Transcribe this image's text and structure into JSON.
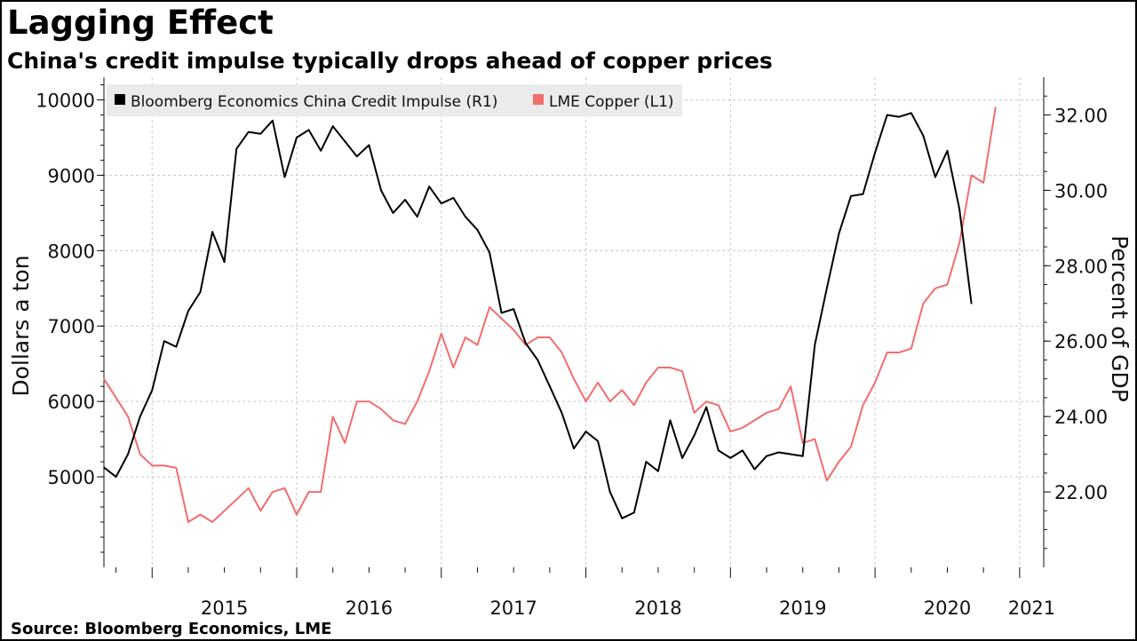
{
  "header": {
    "title": "Lagging Effect",
    "subtitle": "China's credit impulse typically drops ahead of copper prices"
  },
  "footer": {
    "source": "Source: Bloomberg Economics, LME"
  },
  "colors": {
    "credit_impulse": "#000000",
    "copper": "#f26d6d",
    "grid": "#c8c8c8",
    "legend_bg": "#ebebeb"
  },
  "chart_data": {
    "type": "line",
    "title": "Lagging Effect",
    "subtitle": "China's credit impulse typically drops ahead of copper prices",
    "x_tick_labels": [
      "2015",
      "2016",
      "2017",
      "2018",
      "2019",
      "2020",
      "2021"
    ],
    "xlim": [
      "2014-09",
      "2021-03"
    ],
    "y_left": {
      "label": "Dollars a ton",
      "ticks": [
        "5000",
        "6000",
        "7000",
        "8000",
        "9000",
        "10000"
      ],
      "range": [
        3800,
        10300
      ]
    },
    "y_right": {
      "label": "Percent of GDP",
      "ticks": [
        "22.00",
        "24.00",
        "26.00",
        "28.00",
        "30.00",
        "32.00"
      ],
      "range": [
        20,
        33
      ]
    },
    "legend": {
      "position": "top-left",
      "entries": [
        "Bloomberg Economics China Credit Impulse  (R1)",
        "LME Copper (L1)"
      ]
    },
    "grid": true,
    "series": [
      {
        "name": "Bloomberg Economics China Credit Impulse  (R1)",
        "axis": "right",
        "color": "#000000",
        "points": [
          [
            "2014-09",
            22.65
          ],
          [
            "2014-10",
            22.4
          ],
          [
            "2014-11",
            23.0
          ],
          [
            "2014-12",
            24.0
          ],
          [
            "2015-01",
            24.7
          ],
          [
            "2015-02",
            26.0
          ],
          [
            "2015-03",
            25.85
          ],
          [
            "2015-04",
            26.8
          ],
          [
            "2015-05",
            27.3
          ],
          [
            "2015-06",
            28.9
          ],
          [
            "2015-07",
            28.1
          ],
          [
            "2015-08",
            31.1
          ],
          [
            "2015-09",
            31.55
          ],
          [
            "2015-10",
            31.5
          ],
          [
            "2015-11",
            31.85
          ],
          [
            "2015-12",
            30.35
          ],
          [
            "2016-01",
            31.4
          ],
          [
            "2016-02",
            31.6
          ],
          [
            "2016-03",
            31.05
          ],
          [
            "2016-04",
            31.7
          ],
          [
            "2016-05",
            31.3
          ],
          [
            "2016-06",
            30.9
          ],
          [
            "2016-07",
            31.2
          ],
          [
            "2016-08",
            30.0
          ],
          [
            "2016-09",
            29.4
          ],
          [
            "2016-10",
            29.75
          ],
          [
            "2016-11",
            29.3
          ],
          [
            "2016-12",
            30.1
          ],
          [
            "2017-01",
            29.65
          ],
          [
            "2017-02",
            29.8
          ],
          [
            "2017-03",
            29.3
          ],
          [
            "2017-04",
            28.95
          ],
          [
            "2017-05",
            28.35
          ],
          [
            "2017-06",
            26.75
          ],
          [
            "2017-07",
            26.85
          ],
          [
            "2017-08",
            25.95
          ],
          [
            "2017-09",
            25.5
          ],
          [
            "2017-10",
            24.8
          ],
          [
            "2017-11",
            24.1
          ],
          [
            "2017-12",
            23.15
          ],
          [
            "2018-01",
            23.6
          ],
          [
            "2018-02",
            23.35
          ],
          [
            "2018-03",
            22.0
          ],
          [
            "2018-04",
            21.3
          ],
          [
            "2018-05",
            21.45
          ],
          [
            "2018-06",
            22.8
          ],
          [
            "2018-07",
            22.55
          ],
          [
            "2018-08",
            23.9
          ],
          [
            "2018-09",
            22.9
          ],
          [
            "2018-10",
            23.5
          ],
          [
            "2018-11",
            24.25
          ],
          [
            "2018-12",
            23.1
          ],
          [
            "2019-01",
            22.9
          ],
          [
            "2019-02",
            23.1
          ],
          [
            "2019-03",
            22.6
          ],
          [
            "2019-04",
            22.95
          ],
          [
            "2019-05",
            23.05
          ],
          [
            "2019-06",
            23.0
          ],
          [
            "2019-07",
            22.95
          ],
          [
            "2019-08",
            25.9
          ],
          [
            "2019-09",
            27.4
          ],
          [
            "2019-10",
            28.85
          ],
          [
            "2019-11",
            29.85
          ],
          [
            "2019-12",
            29.9
          ],
          [
            "2020-01",
            31.0
          ],
          [
            "2020-02",
            32.0
          ],
          [
            "2020-03",
            31.95
          ],
          [
            "2020-04",
            32.05
          ],
          [
            "2020-05",
            31.45
          ],
          [
            "2020-06",
            30.35
          ],
          [
            "2020-07",
            31.05
          ],
          [
            "2020-08",
            29.5
          ],
          [
            "2020-09",
            27.0
          ]
        ]
      },
      {
        "name": "LME Copper (L1)",
        "axis": "left",
        "color": "#f26d6d",
        "points": [
          [
            "2014-09",
            6300
          ],
          [
            "2014-10",
            6050
          ],
          [
            "2014-11",
            5800
          ],
          [
            "2014-12",
            5300
          ],
          [
            "2015-01",
            5150
          ],
          [
            "2015-02",
            5150
          ],
          [
            "2015-03",
            5120
          ],
          [
            "2015-04",
            4400
          ],
          [
            "2015-05",
            4500
          ],
          [
            "2015-06",
            4400
          ],
          [
            "2015-07",
            4550
          ],
          [
            "2015-08",
            4700
          ],
          [
            "2015-09",
            4850
          ],
          [
            "2015-10",
            4550
          ],
          [
            "2015-11",
            4800
          ],
          [
            "2015-12",
            4850
          ],
          [
            "2016-01",
            4500
          ],
          [
            "2016-02",
            4800
          ],
          [
            "2016-03",
            4800
          ],
          [
            "2016-04",
            5800
          ],
          [
            "2016-05",
            5450
          ],
          [
            "2016-06",
            6000
          ],
          [
            "2016-07",
            6000
          ],
          [
            "2016-08",
            5900
          ],
          [
            "2016-09",
            5750
          ],
          [
            "2016-10",
            5700
          ],
          [
            "2016-11",
            6000
          ],
          [
            "2016-12",
            6400
          ],
          [
            "2017-01",
            6900
          ],
          [
            "2017-02",
            6450
          ],
          [
            "2017-03",
            6850
          ],
          [
            "2017-04",
            6750
          ],
          [
            "2017-05",
            7250
          ],
          [
            "2017-06",
            7100
          ],
          [
            "2017-07",
            6950
          ],
          [
            "2017-08",
            6750
          ],
          [
            "2017-09",
            6850
          ],
          [
            "2017-10",
            6850
          ],
          [
            "2017-11",
            6650
          ],
          [
            "2017-12",
            6300
          ],
          [
            "2018-01",
            6000
          ],
          [
            "2018-02",
            6250
          ],
          [
            "2018-03",
            6000
          ],
          [
            "2018-04",
            6150
          ],
          [
            "2018-05",
            5950
          ],
          [
            "2018-06",
            6250
          ],
          [
            "2018-07",
            6450
          ],
          [
            "2018-08",
            6450
          ],
          [
            "2018-09",
            6400
          ],
          [
            "2018-10",
            5850
          ],
          [
            "2018-11",
            6000
          ],
          [
            "2018-12",
            5950
          ],
          [
            "2019-01",
            5600
          ],
          [
            "2019-02",
            5650
          ],
          [
            "2019-03",
            5750
          ],
          [
            "2019-04",
            5850
          ],
          [
            "2019-05",
            5900
          ],
          [
            "2019-06",
            6200
          ],
          [
            "2019-07",
            5450
          ],
          [
            "2019-08",
            5500
          ],
          [
            "2019-09",
            4950
          ],
          [
            "2019-10",
            5200
          ],
          [
            "2019-11",
            5400
          ],
          [
            "2019-12",
            5950
          ],
          [
            "2020-01",
            6250
          ],
          [
            "2020-02",
            6650
          ],
          [
            "2020-03",
            6650
          ],
          [
            "2020-04",
            6700
          ],
          [
            "2020-05",
            7300
          ],
          [
            "2020-06",
            7500
          ],
          [
            "2020-07",
            7550
          ],
          [
            "2020-08",
            8100
          ],
          [
            "2020-09",
            9000
          ],
          [
            "2020-10",
            8900
          ],
          [
            "2020-11",
            9900
          ]
        ]
      }
    ]
  }
}
